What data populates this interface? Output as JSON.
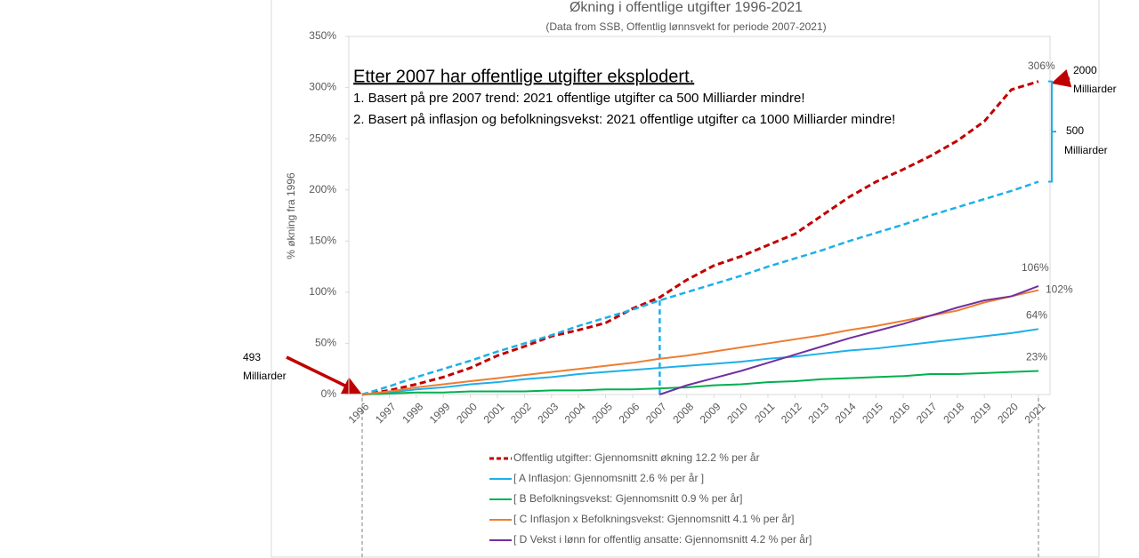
{
  "chart_data": {
    "type": "line",
    "title": "Økning i offentlige utgifter 1996-2021",
    "subtitle": "(Data from SSB, Offentlig lønnsvekt for periode 2007-2021)",
    "ylabel": "% økning fra 1996",
    "categories": [
      "1996",
      "1997",
      "1998",
      "1999",
      "2000",
      "2001",
      "2002",
      "2003",
      "2004",
      "2005",
      "2006",
      "2007",
      "2008",
      "2009",
      "2010",
      "2011",
      "2012",
      "2013",
      "2014",
      "2015",
      "2016",
      "2017",
      "2018",
      "2019",
      "2020",
      "2021"
    ],
    "ylim": [
      0,
      350
    ],
    "yticks": [
      {
        "value": 0,
        "label": "0%"
      },
      {
        "value": 50,
        "label": "50%"
      },
      {
        "value": 100,
        "label": "100%"
      },
      {
        "value": 150,
        "label": "150%"
      },
      {
        "value": 200,
        "label": "200%"
      },
      {
        "value": 250,
        "label": "250%"
      },
      {
        "value": 300,
        "label": "300%"
      },
      {
        "value": 350,
        "label": "350%"
      }
    ],
    "grid": false,
    "series": [
      {
        "name": "Offentlig utgifter: Gjennomsnitt økning 12.2 % per år",
        "color": "#c00000",
        "style": "dashed",
        "values": [
          0,
          4,
          10,
          17,
          26,
          38,
          47,
          57,
          63,
          70,
          84,
          95,
          112,
          126,
          135,
          146,
          157,
          175,
          193,
          208,
          220,
          233,
          248,
          267,
          298,
          306
        ],
        "value_labels": [
          null,
          null,
          null,
          null,
          null,
          null,
          null,
          null,
          null,
          null,
          null,
          null,
          null,
          null,
          null,
          null,
          null,
          null,
          null,
          null,
          null,
          null,
          null,
          null,
          null,
          "306%"
        ]
      },
      {
        "color": "#1cb0ea",
        "style": "dashed",
        "values": [
          0,
          8,
          17,
          25,
          33,
          42,
          50,
          58,
          67,
          75,
          83,
          92,
          100,
          108,
          116,
          125,
          133,
          141,
          150,
          158,
          166,
          175,
          183,
          191,
          199,
          208
        ]
      },
      {
        "name": "[ A Inflasjon: Gjennomsnitt 2.6 % per år ]",
        "color": "#1cb0ea",
        "style": "solid",
        "values": [
          0,
          2,
          5,
          7,
          10,
          12,
          15,
          17,
          20,
          22,
          24,
          26,
          28,
          30,
          32,
          35,
          37,
          40,
          43,
          45,
          48,
          51,
          54,
          57,
          60,
          64
        ],
        "value_labels": [
          null,
          null,
          null,
          null,
          null,
          null,
          null,
          null,
          null,
          null,
          null,
          null,
          null,
          null,
          null,
          null,
          null,
          null,
          null,
          null,
          null,
          null,
          null,
          null,
          null,
          "64%"
        ]
      },
      {
        "name": "[ B Befolkningsvekst: Gjennomsnitt 0.9 % per år]",
        "color": "#00b050",
        "style": "solid",
        "values": [
          0,
          1,
          2,
          2,
          3,
          3,
          3,
          4,
          4,
          5,
          5,
          6,
          7,
          9,
          10,
          12,
          13,
          15,
          16,
          17,
          18,
          20,
          20,
          21,
          22,
          23
        ],
        "value_labels": [
          null,
          null,
          null,
          null,
          null,
          null,
          null,
          null,
          null,
          null,
          null,
          null,
          null,
          null,
          null,
          null,
          null,
          null,
          null,
          null,
          null,
          null,
          null,
          null,
          null,
          "23%"
        ]
      },
      {
        "name": "[ C Inflasjon x Befolkningsvekst: Gjennomsnitt 4.1 % per år]",
        "color": "#ed7d31",
        "style": "solid",
        "values": [
          0,
          3,
          7,
          10,
          13,
          16,
          19,
          22,
          25,
          28,
          31,
          35,
          38,
          42,
          46,
          50,
          54,
          58,
          63,
          67,
          72,
          77,
          82,
          90,
          96,
          102
        ],
        "value_labels": [
          null,
          null,
          null,
          null,
          null,
          null,
          null,
          null,
          null,
          null,
          null,
          null,
          null,
          null,
          null,
          null,
          null,
          null,
          null,
          null,
          null,
          null,
          null,
          null,
          null,
          "102%"
        ]
      },
      {
        "name": "[ D Vekst i lønn for offentlig ansatte: Gjennomsnitt 4.2 % per år]",
        "color": "#7030a0",
        "style": "solid",
        "values": [
          null,
          null,
          null,
          null,
          null,
          null,
          null,
          null,
          null,
          null,
          null,
          0,
          9,
          16,
          23,
          31,
          39,
          47,
          55,
          62,
          69,
          77,
          85,
          92,
          96,
          106
        ],
        "value_labels": [
          null,
          null,
          null,
          null,
          null,
          null,
          null,
          null,
          null,
          null,
          null,
          null,
          null,
          null,
          null,
          null,
          null,
          null,
          null,
          null,
          null,
          null,
          null,
          null,
          null,
          "106%"
        ]
      }
    ],
    "annotations": {
      "headline": "Etter 2007 har offentlige utgifter eksplodert.",
      "line1": "1. Basert på pre 2007 trend: 2021 offentlige utgifter ca 500 Milliarder mindre!",
      "line2": "2. Basert på inflasjon og befolkningsvekst: 2021 offentlige utgifter ca 1000 Milliarder mindre!",
      "top_right": [
        "2000",
        "Milliarder"
      ],
      "bracket": [
        "500",
        "Milliarder"
      ],
      "left": [
        "493",
        "Milliarder"
      ]
    }
  }
}
